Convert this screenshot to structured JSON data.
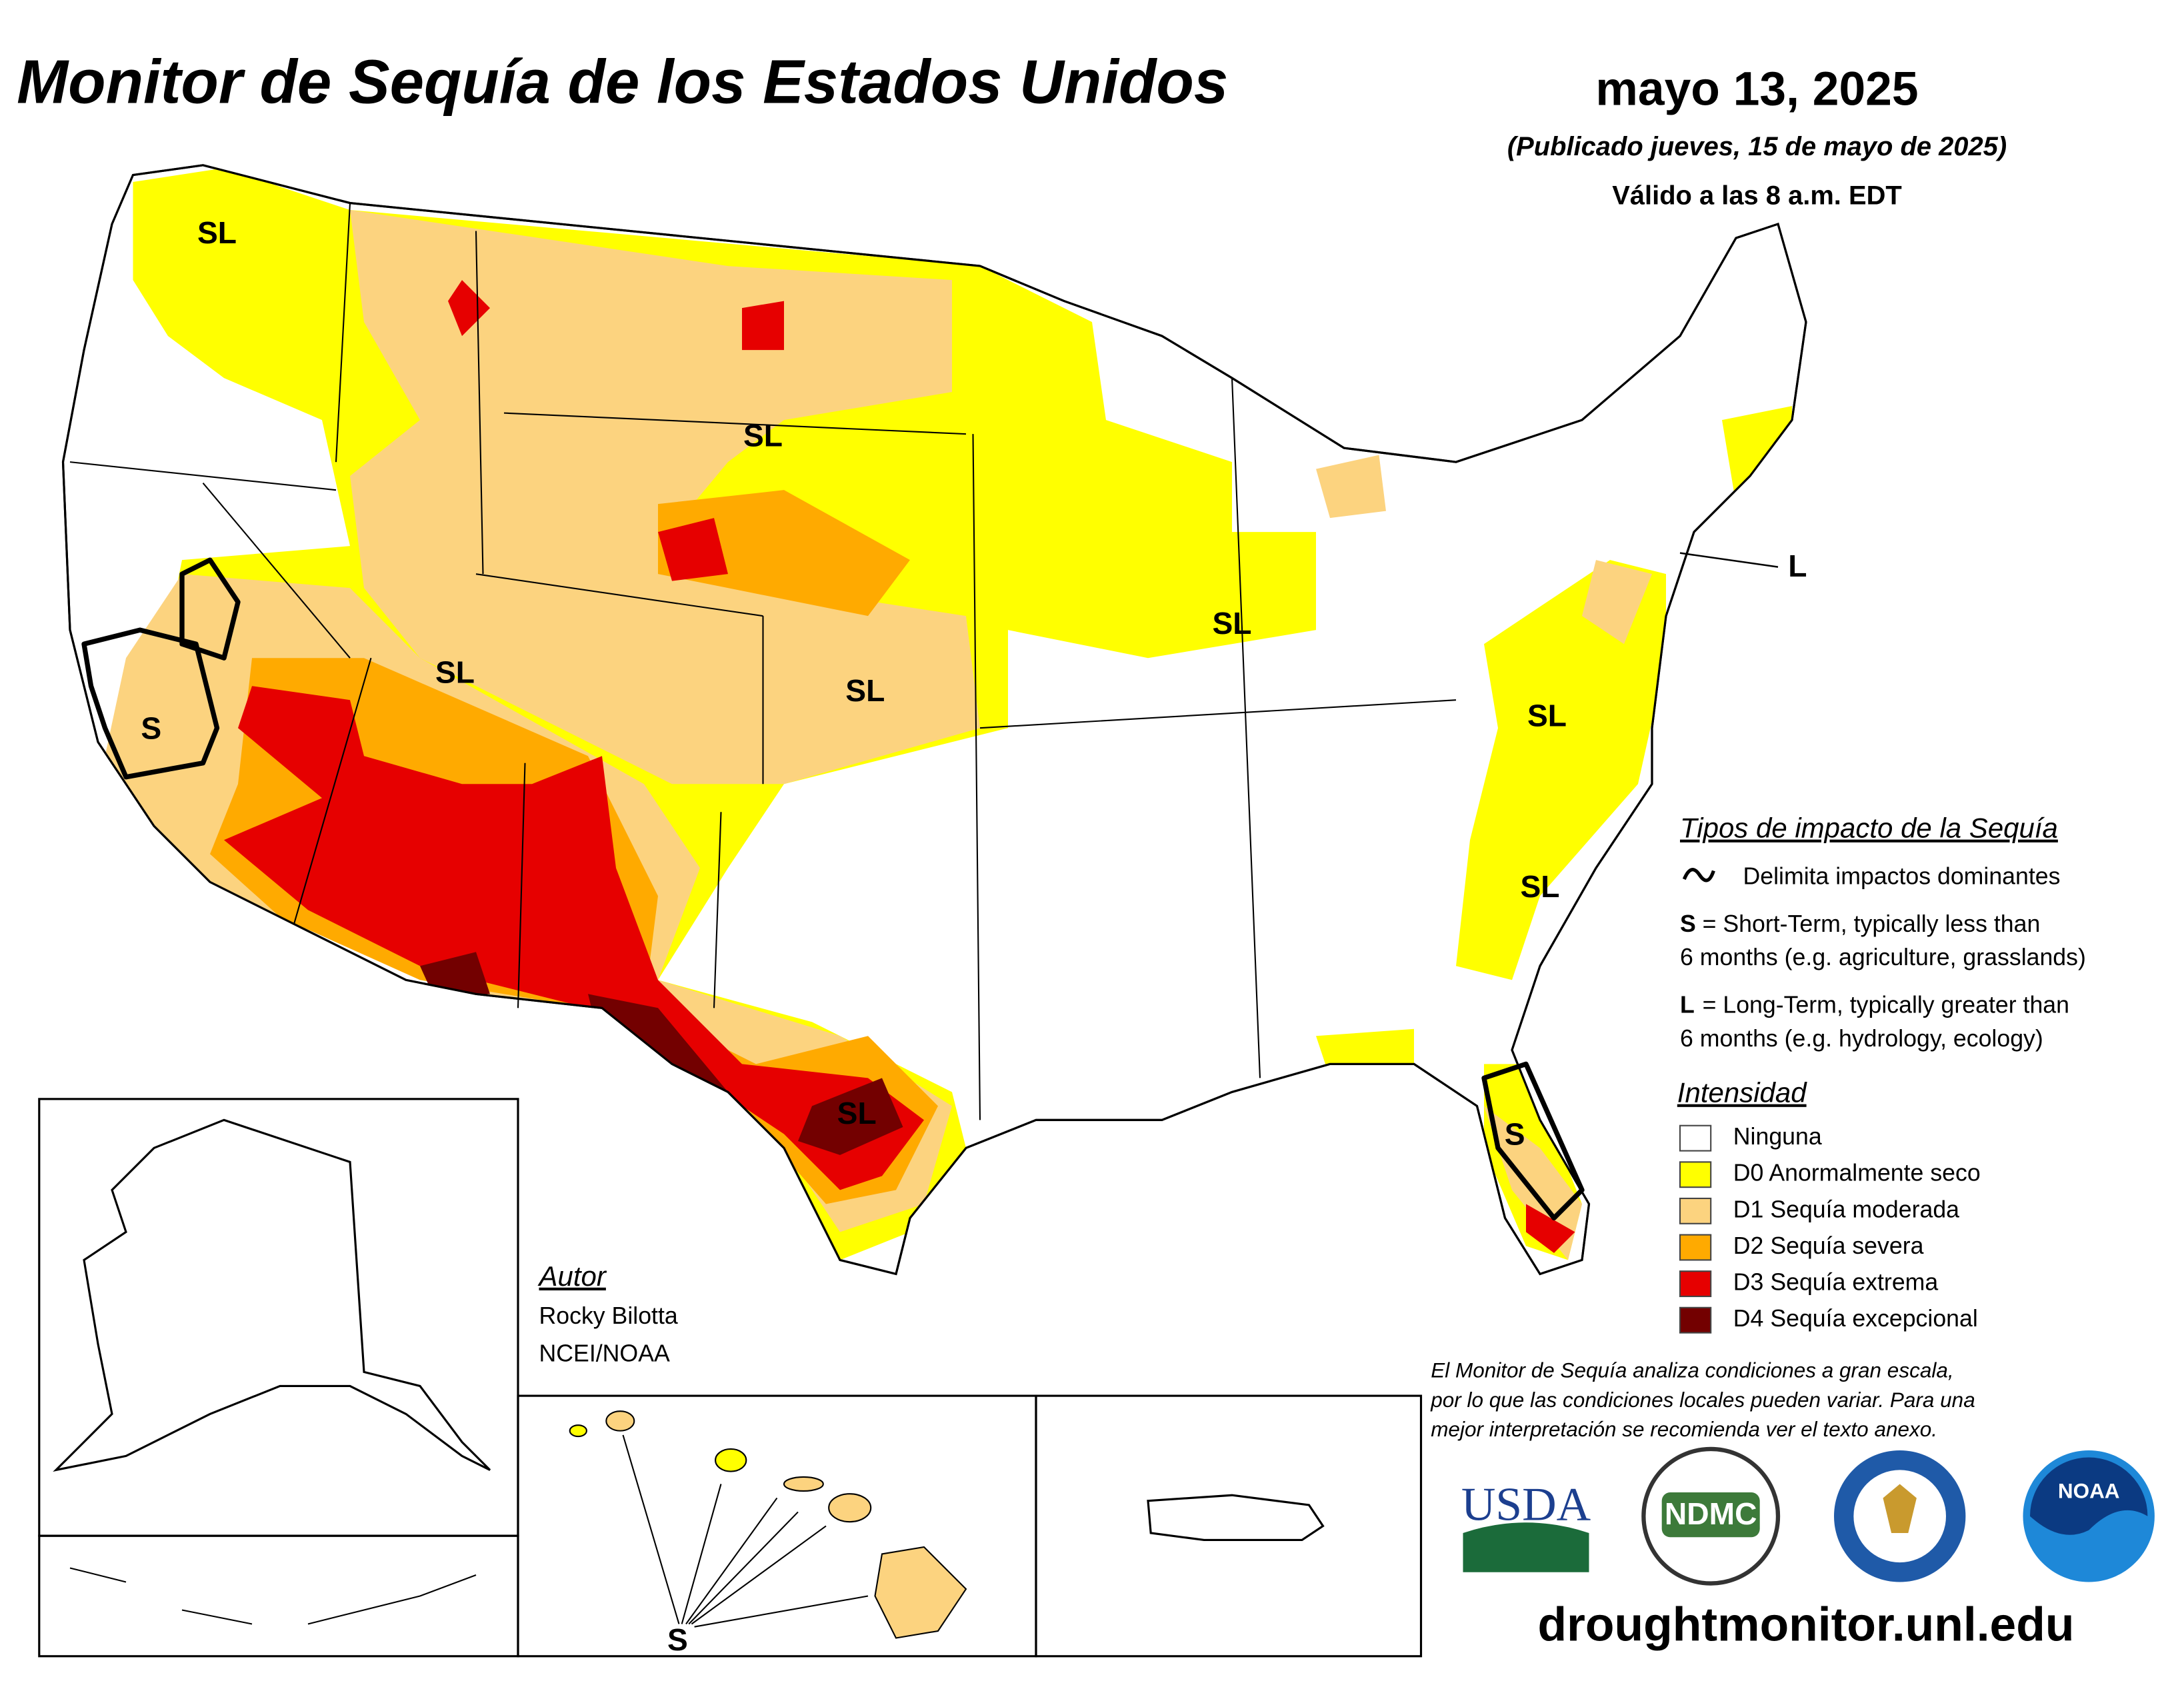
{
  "header": {
    "title": "Monitor de Sequía de los Estados Unidos",
    "date": "mayo 13, 2025",
    "published": "(Publicado jueves, 15 de mayo de 2025)",
    "valid": "Válido a las 8 a.m. EDT"
  },
  "impact_legend": {
    "title": "Tipos de impacto de la Sequía",
    "items": [
      {
        "text": [
          "Delimita impactos dominantes"
        ]
      },
      {
        "key": "S",
        "text": [
          "= Short-Term, typically less than",
          "6 months (e.g. agriculture, grasslands)"
        ]
      },
      {
        "key": "L",
        "text": [
          "= Long-Term, typically greater than",
          "6 months (e.g. hydrology, ecology)"
        ]
      }
    ]
  },
  "intensity_legend": {
    "title": "Intensidad",
    "items": [
      {
        "label": "Ninguna",
        "color": "#ffffff"
      },
      {
        "label": "D0 Anormalmente seco",
        "color": "#ffff00"
      },
      {
        "label": "D1 Sequía moderada",
        "color": "#fcd37f"
      },
      {
        "label": "D2 Sequía severa",
        "color": "#ffaa00"
      },
      {
        "label": "D3 Sequía extrema",
        "color": "#e60000"
      },
      {
        "label": "D4 Sequía excepcional",
        "color": "#730000"
      }
    ]
  },
  "map_labels": [
    "SL",
    "SL",
    "SL",
    "SL",
    "SL",
    "S",
    "L",
    "SL",
    "SL",
    "SL",
    "S",
    "S"
  ],
  "author": {
    "title": "Autor",
    "name": "Rocky Bilotta",
    "org": "NCEI/NOAA"
  },
  "disclaimer": [
    "El Monitor de Sequía analiza condiciones a gran escala,",
    "por lo que las condiciones locales pueden variar. Para una",
    "mejor interpretación se recomienda ver el texto anexo."
  ],
  "logos": [
    "USDA",
    "NDMC",
    "NOAA"
  ],
  "url": "droughtmonitor.unl.edu"
}
